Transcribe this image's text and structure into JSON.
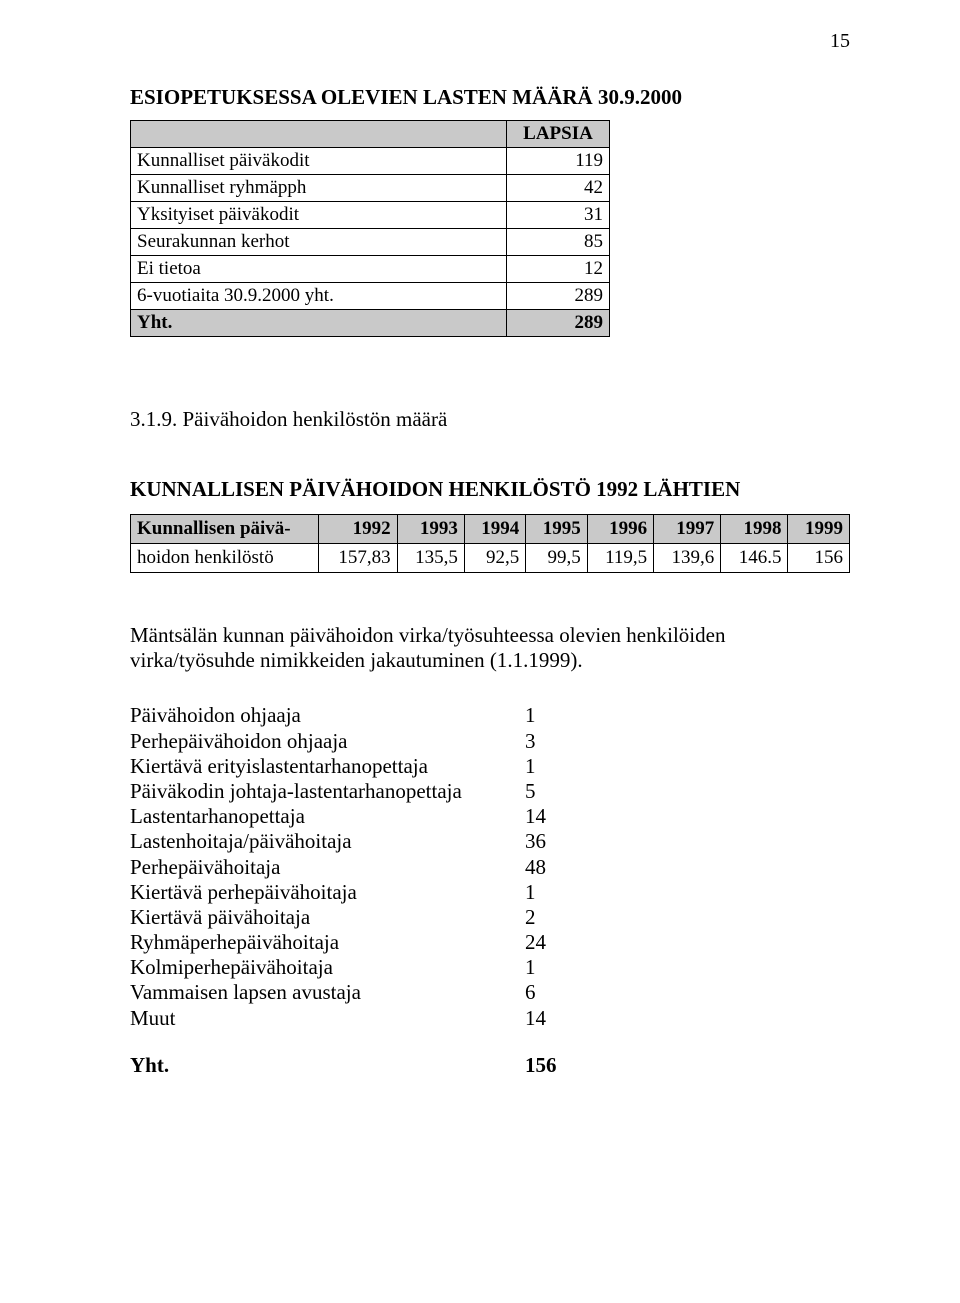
{
  "page_number": "15",
  "main_title": "ESIOPETUKSESSA OLEVIEN LASTEN MÄÄRÄ 30.9.2000",
  "table1": {
    "header_empty": "",
    "header_col": "LAPSIA",
    "rows": [
      {
        "label": "Kunnalliset päiväkodit",
        "value": "119"
      },
      {
        "label": "Kunnalliset ryhmäpph",
        "value": "42"
      },
      {
        "label": "Yksityiset päiväkodit",
        "value": "31"
      },
      {
        "label": "Seurakunnan kerhot",
        "value": "85"
      },
      {
        "label": "Ei tietoa",
        "value": "12"
      },
      {
        "label": "6-vuotiaita 30.9.2000 yht.",
        "value": "289"
      }
    ],
    "total_label": "Yht.",
    "total_value": "289"
  },
  "subsection_title": "3.1.9. Päivähoidon henkilöstön määrä",
  "table2": {
    "title": "KUNNALLISEN PÄIVÄHOIDON HENKILÖSTÖ 1992 LÄHTIEN",
    "row_header_line1": "Kunnallisen päivä-",
    "row_header_line2": "hoidon henkilöstö",
    "years": [
      "1992",
      "1993",
      "1994",
      "1995",
      "1996",
      "1997",
      "1998",
      "1999"
    ],
    "values": [
      "157,83",
      "135,5",
      "92,5",
      "99,5",
      "119,5",
      "139,6",
      "146.5",
      "156"
    ]
  },
  "paragraph": "Mäntsälän kunnan päivähoidon virka/työsuhteessa olevien henkilöiden virka/työsuhde nimikkeiden jakautuminen (1.1.1999).",
  "roles": [
    {
      "label": "Päivähoidon ohjaaja",
      "value": "1"
    },
    {
      "label": "Perhepäivähoidon ohjaaja",
      "value": "3"
    },
    {
      "label": "Kiertävä erityislastentarhanopettaja",
      "value": "1"
    },
    {
      "label": "Päiväkodin johtaja-lastentarhanopettaja",
      "value": "5"
    },
    {
      "label": "Lastentarhanopettaja",
      "value": "14"
    },
    {
      "label": "Lastenhoitaja/päivähoitaja",
      "value": "36"
    },
    {
      "label": "Perhepäivähoitaja",
      "value": "48"
    },
    {
      "label": "Kiertävä perhepäivähoitaja",
      "value": "1"
    },
    {
      "label": "Kiertävä päivähoitaja",
      "value": "2"
    },
    {
      "label": "Ryhmäperhepäivähoitaja",
      "value": "24"
    },
    {
      "label": "Kolmiperhepäivähoitaja",
      "value": "1"
    },
    {
      "label": "Vammaisen lapsen avustaja",
      "value": "6"
    },
    {
      "label": "Muut",
      "value": "14"
    }
  ],
  "roles_total_label": "Yht.",
  "roles_total_value": "156"
}
